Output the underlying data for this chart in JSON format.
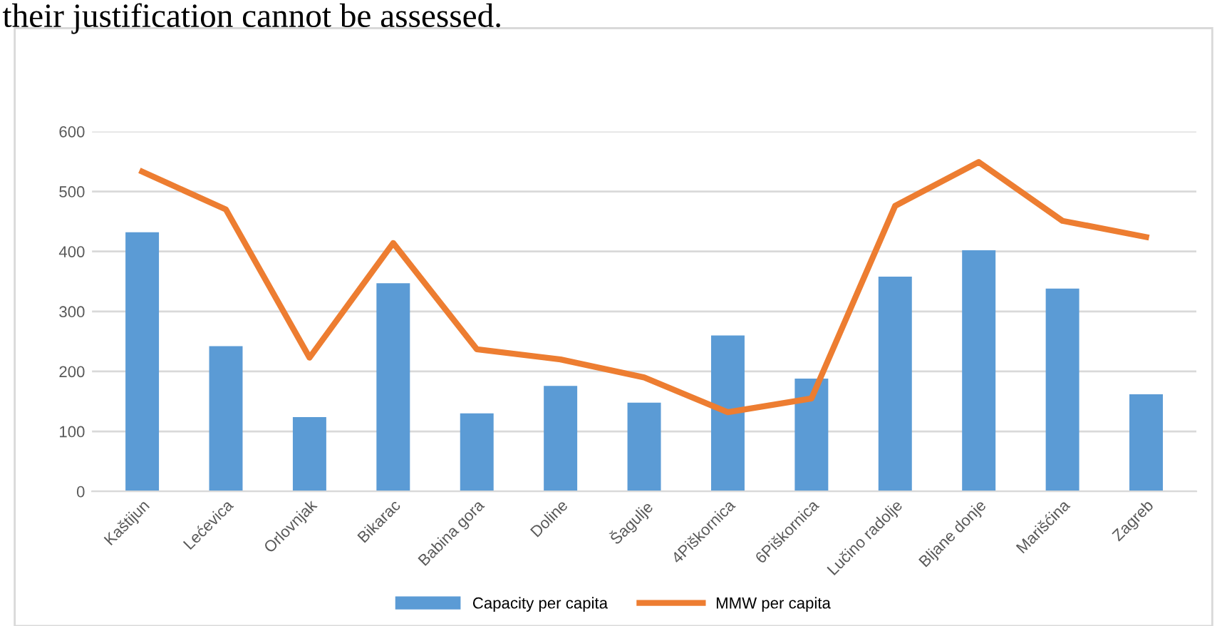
{
  "chart_data": {
    "type": "bar",
    "annotations": [
      "their justification cannot be assessed."
    ],
    "categories": [
      "Kaštijun",
      "Lećevica",
      "Orlovnjak",
      "Bikarac",
      "Babina gora",
      "Doline",
      "Šagulje",
      "4Piškornica",
      "6Piškornica",
      "Lučino radolje",
      "Bljane donje",
      "Marišćina",
      "Zagreb"
    ],
    "series": [
      {
        "name": "Capacity per capita",
        "color": "#5b9bd5",
        "values": [
          432,
          242,
          124,
          347,
          130,
          176,
          148,
          260,
          188,
          358,
          402,
          338,
          162
        ]
      },
      {
        "name": "MMW per capita",
        "type": "line",
        "color": "#ed7d31",
        "values": [
          533,
          470,
          223,
          414,
          237,
          220,
          190,
          132,
          155,
          476,
          549,
          451,
          424
        ]
      }
    ],
    "ylim": [
      0,
      600
    ],
    "yticks": [
      0,
      100,
      200,
      300,
      400,
      500,
      600
    ],
    "grid": "y",
    "legend": "bottom"
  }
}
